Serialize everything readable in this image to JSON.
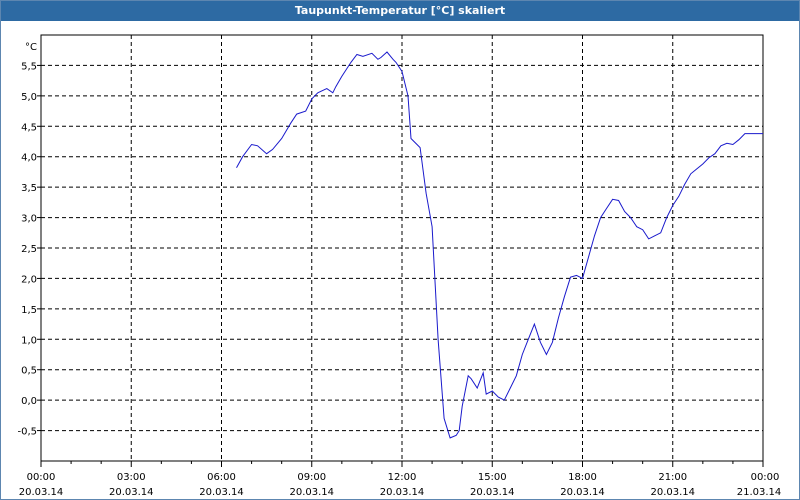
{
  "window": {
    "title": "Taupunkt-Temperatur [°C] skaliert"
  },
  "chart_data": {
    "type": "line",
    "title": "Taupunkt-Temperatur [°C] skaliert",
    "ylabel": "°C",
    "xlabel": "",
    "xlim": [
      0,
      24
    ],
    "ylim": [
      -1,
      6
    ],
    "grid": true,
    "line_color": "#1a1acc",
    "y_ticks": [
      {
        "v": -0.5,
        "label": "-0,5"
      },
      {
        "v": 0.0,
        "label": "0,0"
      },
      {
        "v": 0.5,
        "label": "0,5"
      },
      {
        "v": 1.0,
        "label": "1,0"
      },
      {
        "v": 1.5,
        "label": "1,5"
      },
      {
        "v": 2.0,
        "label": "2,0"
      },
      {
        "v": 2.5,
        "label": "2,5"
      },
      {
        "v": 3.0,
        "label": "3,0"
      },
      {
        "v": 3.5,
        "label": "3,5"
      },
      {
        "v": 4.0,
        "label": "4,0"
      },
      {
        "v": 4.5,
        "label": "4,5"
      },
      {
        "v": 5.0,
        "label": "5,0"
      },
      {
        "v": 5.5,
        "label": "5,5"
      }
    ],
    "x_ticks": [
      {
        "v": 0,
        "time": "00:00",
        "date": "20.03.14"
      },
      {
        "v": 3,
        "time": "03:00",
        "date": "20.03.14"
      },
      {
        "v": 6,
        "time": "06:00",
        "date": "20.03.14"
      },
      {
        "v": 9,
        "time": "09:00",
        "date": "20.03.14"
      },
      {
        "v": 12,
        "time": "12:00",
        "date": "20.03.14"
      },
      {
        "v": 15,
        "time": "15:00",
        "date": "20.03.14"
      },
      {
        "v": 18,
        "time": "18:00",
        "date": "20.03.14"
      },
      {
        "v": 21,
        "time": "21:00",
        "date": "20.03.14"
      },
      {
        "v": 24,
        "time": "00:00",
        "date": "21.03.14"
      }
    ],
    "series": [
      {
        "x": [
          6.5,
          6.7,
          7.0,
          7.2,
          7.5,
          7.7,
          8.0,
          8.3,
          8.5,
          8.8,
          9.0,
          9.2,
          9.5,
          9.7,
          9.8,
          10.0,
          10.3,
          10.5,
          10.7,
          11.0,
          11.2,
          11.3,
          11.5,
          11.7,
          11.8,
          12.0,
          12.1,
          12.2,
          12.3,
          12.5,
          12.6,
          12.8,
          13.0,
          13.2,
          13.4,
          13.6,
          13.8,
          13.9,
          14.0,
          14.2,
          14.3,
          14.5,
          14.7,
          14.8,
          15.0,
          15.2,
          15.4,
          15.6,
          15.8,
          16.0,
          16.2,
          16.4,
          16.6,
          16.8,
          17.0,
          17.2,
          17.4,
          17.6,
          17.8,
          18.0,
          18.2,
          18.4,
          18.6,
          18.8,
          19.0,
          19.2,
          19.4,
          19.6,
          19.8,
          20.0,
          20.2,
          20.4,
          20.6,
          20.8,
          21.0,
          21.2,
          21.4,
          21.6,
          21.8,
          22.0,
          22.2,
          22.4,
          22.6,
          22.8,
          23.0,
          23.2,
          23.4,
          23.6,
          23.8,
          24.0
        ],
        "y": [
          3.82,
          4.0,
          4.2,
          4.18,
          4.05,
          4.12,
          4.3,
          4.55,
          4.7,
          4.75,
          4.95,
          5.05,
          5.12,
          5.05,
          5.15,
          5.32,
          5.55,
          5.68,
          5.65,
          5.7,
          5.6,
          5.63,
          5.72,
          5.6,
          5.55,
          5.4,
          5.2,
          5.0,
          4.3,
          4.2,
          4.15,
          3.4,
          2.85,
          1.0,
          -0.3,
          -0.62,
          -0.58,
          -0.5,
          -0.1,
          0.4,
          0.35,
          0.2,
          0.45,
          0.1,
          0.15,
          0.05,
          0.0,
          0.2,
          0.4,
          0.75,
          1.0,
          1.25,
          0.95,
          0.75,
          0.95,
          1.35,
          1.7,
          2.02,
          2.05,
          2.0,
          2.35,
          2.7,
          3.0,
          3.15,
          3.3,
          3.28,
          3.1,
          3.0,
          2.85,
          2.8,
          2.65,
          2.7,
          2.75,
          3.0,
          3.2,
          3.35,
          3.55,
          3.72,
          3.8,
          3.88,
          3.98,
          4.05,
          4.18,
          4.22,
          4.2,
          4.28,
          4.38,
          4.38,
          4.38,
          4.38
        ]
      }
    ]
  }
}
